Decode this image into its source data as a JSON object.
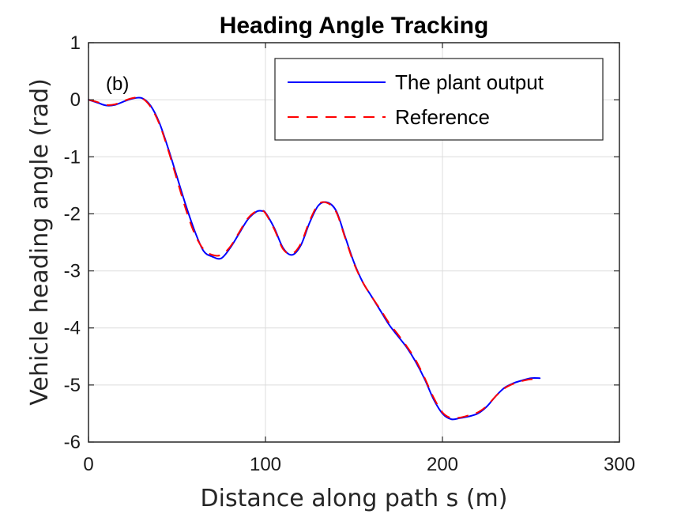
{
  "chart_data": {
    "type": "line",
    "title": "Heading Angle Tracking",
    "xlabel": "Distance along path s (m)",
    "ylabel": "Vehicle heading angle (rad)",
    "xlim": [
      0,
      300
    ],
    "ylim": [
      -6,
      1
    ],
    "xticks": [
      0,
      100,
      200,
      300
    ],
    "yticks": [
      1,
      0,
      -1,
      -2,
      -3,
      -4,
      -5,
      -6
    ],
    "grid": true,
    "legend_position": "top-right",
    "annotation": "(b)",
    "series": [
      {
        "name": "The plant output",
        "color": "#0000ff",
        "style": "solid",
        "x": [
          0,
          5,
          10,
          15,
          20,
          25,
          30,
          35,
          40,
          45,
          50,
          55,
          60,
          65,
          70,
          75,
          80,
          85,
          90,
          95,
          98,
          100,
          105,
          110,
          115,
          120,
          125,
          130,
          135,
          140,
          145,
          150,
          155,
          160,
          165,
          170,
          175,
          180,
          185,
          190,
          195,
          200,
          205,
          210,
          215,
          220,
          225,
          230,
          235,
          240,
          245,
          250,
          255
        ],
        "y": [
          0.0,
          -0.05,
          -0.1,
          -0.09,
          -0.03,
          0.02,
          0.03,
          -0.1,
          -0.4,
          -0.85,
          -1.35,
          -1.85,
          -2.3,
          -2.65,
          -2.75,
          -2.78,
          -2.6,
          -2.35,
          -2.1,
          -1.96,
          -1.95,
          -1.98,
          -2.25,
          -2.6,
          -2.72,
          -2.55,
          -2.15,
          -1.85,
          -1.8,
          -1.95,
          -2.4,
          -2.85,
          -3.2,
          -3.45,
          -3.7,
          -3.95,
          -4.15,
          -4.35,
          -4.6,
          -4.9,
          -5.25,
          -5.5,
          -5.6,
          -5.58,
          -5.55,
          -5.5,
          -5.38,
          -5.2,
          -5.05,
          -4.97,
          -4.92,
          -4.88,
          -4.88
        ]
      },
      {
        "name": "Reference",
        "color": "#ff0000",
        "style": "dashed",
        "x": [
          0,
          5,
          10,
          15,
          20,
          25,
          30,
          35,
          40,
          45,
          50,
          55,
          60,
          65,
          70,
          75,
          80,
          85,
          90,
          95,
          98,
          100,
          105,
          110,
          115,
          120,
          125,
          130,
          135,
          140,
          145,
          150,
          155,
          160,
          165,
          170,
          175,
          180,
          185,
          190,
          195,
          200,
          205,
          210,
          215,
          220,
          225,
          230,
          235,
          240,
          245,
          250,
          255
        ],
        "y": [
          0.0,
          -0.04,
          -0.09,
          -0.08,
          -0.02,
          0.03,
          0.03,
          -0.12,
          -0.42,
          -0.88,
          -1.4,
          -1.92,
          -2.35,
          -2.62,
          -2.72,
          -2.72,
          -2.58,
          -2.33,
          -2.08,
          -1.95,
          -1.95,
          -1.99,
          -2.27,
          -2.62,
          -2.7,
          -2.52,
          -2.12,
          -1.83,
          -1.81,
          -1.97,
          -2.42,
          -2.87,
          -3.2,
          -3.45,
          -3.68,
          -3.92,
          -4.12,
          -4.33,
          -4.57,
          -4.88,
          -5.22,
          -5.48,
          -5.58,
          -5.57,
          -5.53,
          -5.48,
          -5.37,
          -5.2,
          -5.06,
          -4.98,
          -4.93,
          -4.9,
          -4.9
        ]
      }
    ]
  }
}
